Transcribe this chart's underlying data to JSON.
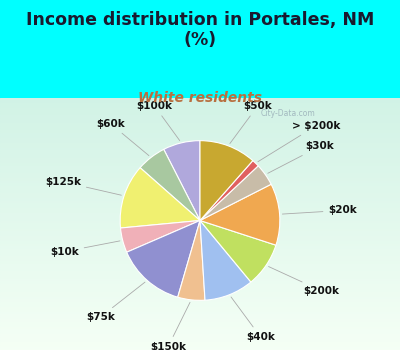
{
  "title": "Income distribution in Portales, NM\n(%)",
  "subtitle": "White residents",
  "title_color": "#1a1a2e",
  "subtitle_color": "#b87040",
  "background_color": "#00ffff",
  "chart_bg_top": "#f0f8f0",
  "chart_bg_bottom": "#d8f0e8",
  "labels": [
    "$100k",
    "$60k",
    "$125k",
    "$10k",
    "$75k",
    "$150k",
    "$40k",
    "$200k",
    "$20k",
    "$30k",
    "> $200k",
    "$50k"
  ],
  "values": [
    7.5,
    6.0,
    13.0,
    5.0,
    14.0,
    5.5,
    10.0,
    9.0,
    12.5,
    4.5,
    1.5,
    11.5
  ],
  "colors": [
    "#b0a8dc",
    "#a8c8a0",
    "#f0f070",
    "#f0b0b8",
    "#9090d0",
    "#f0c090",
    "#a0c0f0",
    "#c0e060",
    "#f0a850",
    "#c8bca8",
    "#e06060",
    "#c8a830"
  ],
  "startangle": 90,
  "label_fontsize": 7.5,
  "title_fontsize": 12.5,
  "subtitle_fontsize": 10,
  "watermark_text": "City-Data.com",
  "wedge_edgecolor": "white",
  "wedge_linewidth": 0.8
}
